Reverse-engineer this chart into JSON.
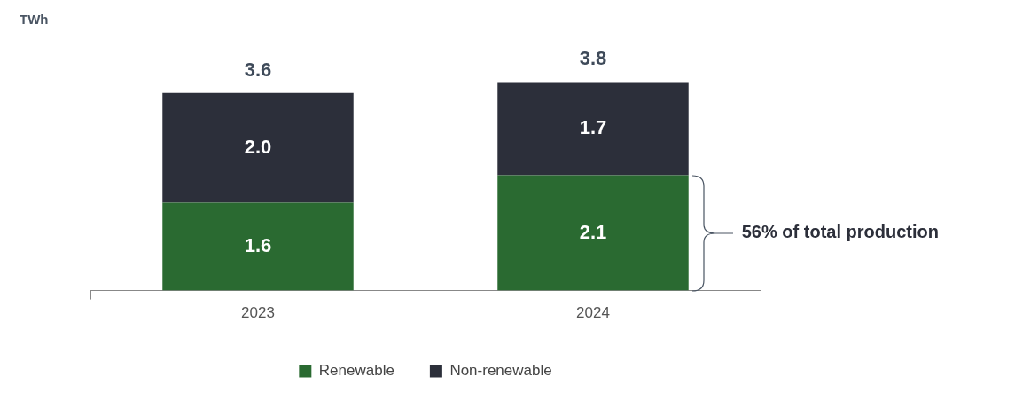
{
  "chart_data": {
    "type": "bar",
    "categories": [
      "2023",
      "2024"
    ],
    "stacked": true,
    "legend": "bottom",
    "grid": false,
    "series": [
      {
        "name": "Renewable",
        "color": "#2a6a31",
        "values": [
          1.6,
          2.1
        ],
        "value_labels": [
          "1.6",
          "2.1"
        ]
      },
      {
        "name": "Non-renewable",
        "color": "#2c2f3a",
        "values": [
          2.0,
          1.7
        ],
        "value_labels": [
          "2.0",
          "1.7"
        ]
      }
    ],
    "totals": [
      "3.6",
      "3.8"
    ],
    "annotations": [
      "TWh",
      "56% of total production"
    ]
  }
}
